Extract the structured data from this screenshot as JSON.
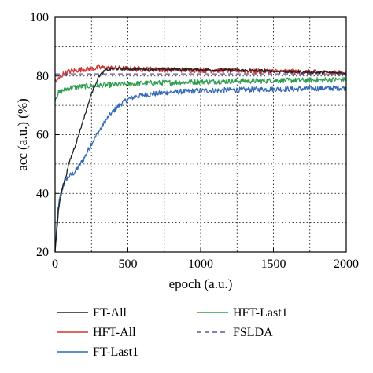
{
  "chart_data": {
    "type": "line",
    "xlabel": "epoch (a.u.)",
    "ylabel": "acc (a.u.) (%)",
    "xlim": [
      0,
      2000
    ],
    "ylim": [
      20,
      100
    ],
    "xticks": [
      0,
      500,
      1000,
      1500,
      2000
    ],
    "yticks": [
      20,
      40,
      60,
      80,
      100
    ],
    "grid": true,
    "legend_position": "below",
    "series": [
      {
        "name": "FT-All",
        "color": "#222222",
        "dash": "solid",
        "x": [
          0,
          25,
          50,
          75,
          100,
          150,
          200,
          250,
          300,
          350,
          400,
          500,
          600,
          800,
          1000,
          1200,
          1400,
          1600,
          1800,
          2000
        ],
        "y": [
          20,
          35,
          42,
          46,
          51,
          58,
          66,
          74,
          80,
          82,
          82.5,
          82.5,
          82.4,
          82.3,
          82.2,
          82,
          81.8,
          81.5,
          81.2,
          81
        ],
        "noise": 0.5
      },
      {
        "name": "HFT-All",
        "color": "#d2352c",
        "dash": "solid",
        "x": [
          0,
          10,
          25,
          50,
          100,
          150,
          200,
          300,
          400,
          500,
          700,
          1000,
          1300,
          1600,
          1800,
          2000
        ],
        "y": [
          79,
          78,
          79,
          80.5,
          81.5,
          82,
          82.3,
          82.8,
          82.7,
          82.5,
          82.2,
          82,
          81.8,
          81.5,
          81.2,
          81
        ],
        "noise": 0.9
      },
      {
        "name": "FT-Last1",
        "color": "#3569b8",
        "dash": "solid",
        "x": [
          0,
          20,
          40,
          60,
          80,
          100,
          130,
          160,
          200,
          250,
          300,
          350,
          400,
          450,
          500,
          550,
          600,
          700,
          800,
          1000,
          1200,
          1500,
          1800,
          2000
        ],
        "y": [
          20,
          35,
          40,
          43,
          45,
          46,
          47,
          49,
          52,
          57,
          61,
          65,
          68,
          70.5,
          72,
          73,
          73.5,
          74,
          74.5,
          75,
          75.2,
          75.5,
          75.7,
          76
        ],
        "noise": 0.9
      },
      {
        "name": "HFT-Last1",
        "color": "#2e9e4f",
        "dash": "solid",
        "x": [
          0,
          20,
          50,
          100,
          200,
          300,
          400,
          500,
          600,
          800,
          1000,
          1200,
          1500,
          1800,
          2000
        ],
        "y": [
          72,
          74,
          75,
          76,
          76.5,
          76.8,
          77,
          77.2,
          77.5,
          77.8,
          78,
          78.2,
          78.4,
          78.6,
          78.8
        ],
        "noise": 0.9
      },
      {
        "name": "FSLDA",
        "color": "#6a4fa3",
        "dash": "dashed",
        "x": [
          0,
          2000
        ],
        "y": [
          80.7,
          80.7
        ],
        "noise": 0
      }
    ]
  }
}
